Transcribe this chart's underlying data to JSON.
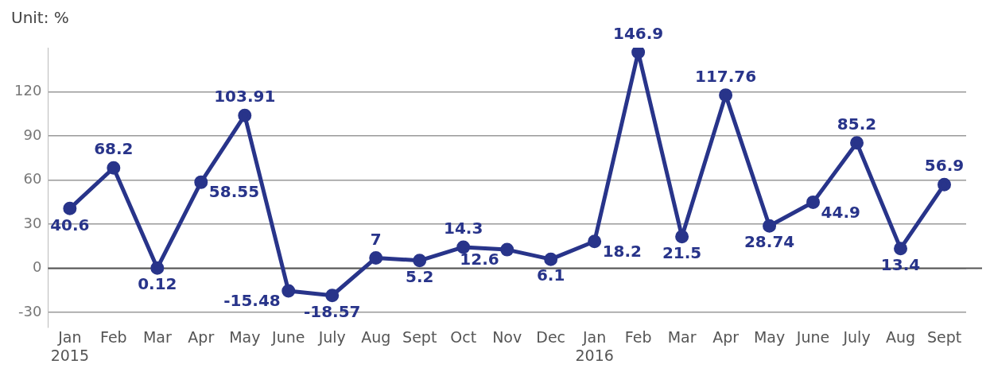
{
  "chart_data": {
    "type": "line",
    "ylabel": "Unit: %",
    "categories": [
      "Jan\n2015",
      "Feb",
      "Mar",
      "Apr",
      "May",
      "June",
      "July",
      "Aug",
      "Sept",
      "Oct",
      "Nov",
      "Dec",
      "Jan\n2016",
      "Feb",
      "Mar",
      "Apr",
      "May",
      "June",
      "July",
      "Aug",
      "Sept"
    ],
    "series": [
      {
        "color": "#28348a",
        "values": [
          40.6,
          68.2,
          0.12,
          58.55,
          103.91,
          -15.48,
          -18.57,
          7,
          5.2,
          14.3,
          12.6,
          6.1,
          18.2,
          146.9,
          21.5,
          117.76,
          28.74,
          44.9,
          85.2,
          13.4,
          56.9
        ]
      }
    ],
    "ylim": [
      -40,
      150
    ],
    "yticks": [
      -30,
      0,
      30,
      60,
      90,
      120
    ],
    "grid": "y",
    "data_labels": true,
    "marker": "circle",
    "line_style": "solid",
    "legend": false
  }
}
